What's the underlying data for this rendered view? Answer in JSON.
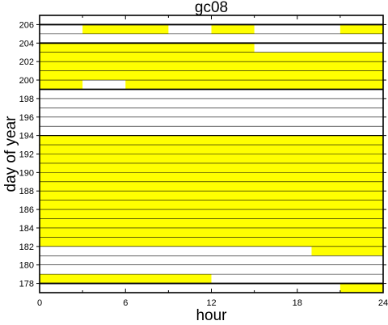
{
  "chart_data": {
    "type": "heatmap",
    "title": "gc08",
    "xlabel": "hour",
    "ylabel": "day of year",
    "xlim": [
      0,
      24
    ],
    "ylim": [
      177,
      206
    ],
    "xticks": [
      "0",
      "6",
      "12",
      "18",
      "24"
    ],
    "yticks": [
      "178",
      "180",
      "182",
      "184",
      "186",
      "188",
      "190",
      "192",
      "194",
      "196",
      "198",
      "200",
      "202",
      "204",
      "206"
    ],
    "grid": true,
    "legend": "none",
    "fill_color": "#ffff00",
    "thick_line_days": [
      178,
      199,
      204,
      206
    ],
    "thin_line_days": [
      194
    ],
    "coverage": [
      {
        "day": 177,
        "start": 21,
        "end": 24
      },
      {
        "day": 178,
        "start": 0,
        "end": 12
      },
      {
        "day": 181,
        "start": 19,
        "end": 24
      },
      {
        "day": 182,
        "start": 0,
        "end": 24
      },
      {
        "day": 183,
        "start": 0,
        "end": 24
      },
      {
        "day": 184,
        "start": 0,
        "end": 24
      },
      {
        "day": 185,
        "start": 0,
        "end": 24
      },
      {
        "day": 186,
        "start": 0,
        "end": 24
      },
      {
        "day": 187,
        "start": 0,
        "end": 24
      },
      {
        "day": 188,
        "start": 0,
        "end": 24
      },
      {
        "day": 189,
        "start": 0,
        "end": 24
      },
      {
        "day": 190,
        "start": 0,
        "end": 24
      },
      {
        "day": 191,
        "start": 0,
        "end": 24
      },
      {
        "day": 192,
        "start": 0,
        "end": 24
      },
      {
        "day": 193,
        "start": 0,
        "end": 24
      },
      {
        "day": 199,
        "start": 0,
        "end": 3
      },
      {
        "day": 199,
        "start": 6,
        "end": 24
      },
      {
        "day": 200,
        "start": 0,
        "end": 24
      },
      {
        "day": 201,
        "start": 0,
        "end": 24
      },
      {
        "day": 202,
        "start": 0,
        "end": 24
      },
      {
        "day": 203,
        "start": 0,
        "end": 15
      },
      {
        "day": 205,
        "start": 3,
        "end": 9
      },
      {
        "day": 205,
        "start": 12,
        "end": 15
      },
      {
        "day": 205,
        "start": 21,
        "end": 24
      }
    ]
  }
}
